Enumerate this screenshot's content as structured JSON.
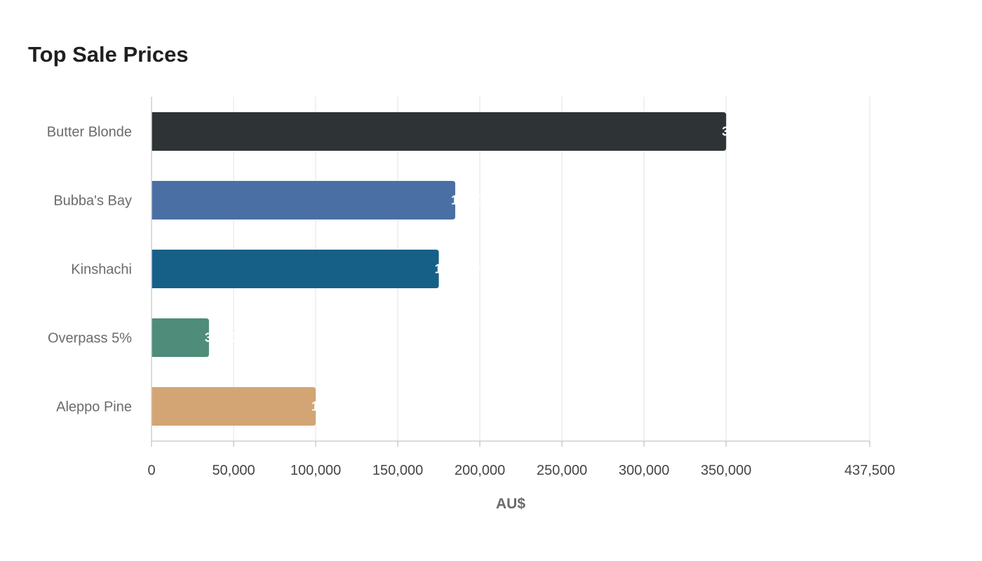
{
  "chart_data": {
    "type": "bar",
    "orientation": "horizontal",
    "title": "Top Sale Prices",
    "xlabel": "AU$",
    "ylabel": "",
    "categories": [
      "Butter Blonde",
      "Bubba's Bay",
      "Kinshachi",
      "Overpass 5%",
      "Aleppo Pine"
    ],
    "values": [
      350000,
      185000,
      175000,
      35000,
      100000
    ],
    "colors": [
      "#2e3336",
      "#4a6fa5",
      "#166088",
      "#4f8c7a",
      "#d4a574"
    ],
    "xlim": [
      0,
      437500
    ],
    "xticks": [
      0,
      50000,
      100000,
      150000,
      200000,
      250000,
      300000,
      350000,
      437500
    ],
    "xtick_labels": [
      "0",
      "50,000",
      "100,000",
      "150,000",
      "200,000",
      "250,000",
      "300,000",
      "350,000",
      "437,500"
    ],
    "grid": true,
    "legend": "none"
  }
}
